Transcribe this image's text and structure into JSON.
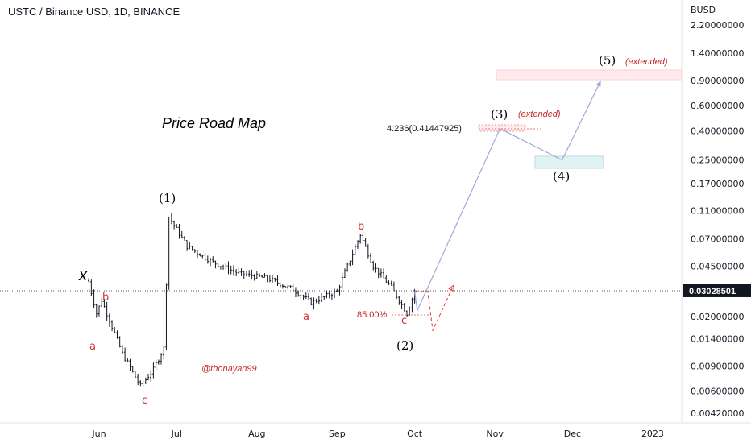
{
  "chart_data": {
    "type": "candlestick",
    "title": "USTC / Binance USD, 1D, BINANCE",
    "price_axis": {
      "unit": "BUSD",
      "scale": "log",
      "ticks": [
        "2.20000000",
        "1.40000000",
        "0.90000000",
        "0.60000000",
        "0.40000000",
        "0.25000000",
        "0.17000000",
        "0.11000000",
        "0.07000000",
        "0.04500000",
        "0.03000000",
        "0.02000000",
        "0.01400000",
        "0.00900000",
        "0.00600000",
        "0.00420000"
      ],
      "last_price": "0.03028501"
    },
    "time_axis": {
      "ticks": [
        "Jun",
        "Jul",
        "Aug",
        "Sep",
        "Oct",
        "Nov",
        "Dec",
        "2023"
      ]
    },
    "annotations": {
      "main_title": "Price Road Map",
      "author": "@thonayan99",
      "fib_level": "4.236(0.41447925)",
      "retrace_pct": "85.00%",
      "extended_3": "(extended)",
      "extended_5": "(extended)"
    },
    "wave_labels": {
      "x": "x",
      "w1": "(1)",
      "w2": "(2)",
      "w3": "(3)",
      "w4": "(4)",
      "w5": "(5)",
      "a1": "a",
      "b1": "b",
      "c1": "c",
      "a2": "a",
      "b2": "b",
      "c2": "c"
    },
    "price_path": [
      {
        "date": "2022-05-28",
        "price": 0.035
      },
      {
        "date": "2022-05-31",
        "price": 0.021
      },
      {
        "date": "2022-06-02",
        "price": 0.026
      },
      {
        "date": "2022-06-10",
        "price": 0.011
      },
      {
        "date": "2022-06-17",
        "price": 0.0065
      },
      {
        "date": "2022-06-22",
        "price": 0.0085
      },
      {
        "date": "2022-06-26",
        "price": 0.012
      },
      {
        "date": "2022-06-28",
        "price": 0.1
      },
      {
        "date": "2022-07-05",
        "price": 0.062
      },
      {
        "date": "2022-07-15",
        "price": 0.048
      },
      {
        "date": "2022-07-25",
        "price": 0.04
      },
      {
        "date": "2022-08-05",
        "price": 0.037
      },
      {
        "date": "2022-08-15",
        "price": 0.031
      },
      {
        "date": "2022-08-22",
        "price": 0.025
      },
      {
        "date": "2022-09-01",
        "price": 0.03
      },
      {
        "date": "2022-09-10",
        "price": 0.075
      },
      {
        "date": "2022-09-15",
        "price": 0.045
      },
      {
        "date": "2022-09-22",
        "price": 0.032
      },
      {
        "date": "2022-09-28",
        "price": 0.021
      },
      {
        "date": "2022-10-01",
        "price": 0.03
      }
    ],
    "projection": [
      {
        "label": "(2)",
        "date": "2022-10-02",
        "price": 0.022
      },
      {
        "label": "(3)",
        "date": "2022-11-03",
        "price": 0.414
      },
      {
        "label": "(4)",
        "date": "2022-11-27",
        "price": 0.25
      },
      {
        "label": "(5)",
        "date": "2022-12-12",
        "price": 0.9
      }
    ],
    "alt_projection": [
      {
        "date": "2022-10-06",
        "price": 0.03
      },
      {
        "date": "2022-10-08",
        "price": 0.016
      },
      {
        "date": "2022-10-16",
        "price": 0.033
      }
    ],
    "colors": {
      "candles": "#131722",
      "projection": "#9fa8da",
      "alt": "#e53935",
      "labels_red": "#d32f2f"
    }
  }
}
